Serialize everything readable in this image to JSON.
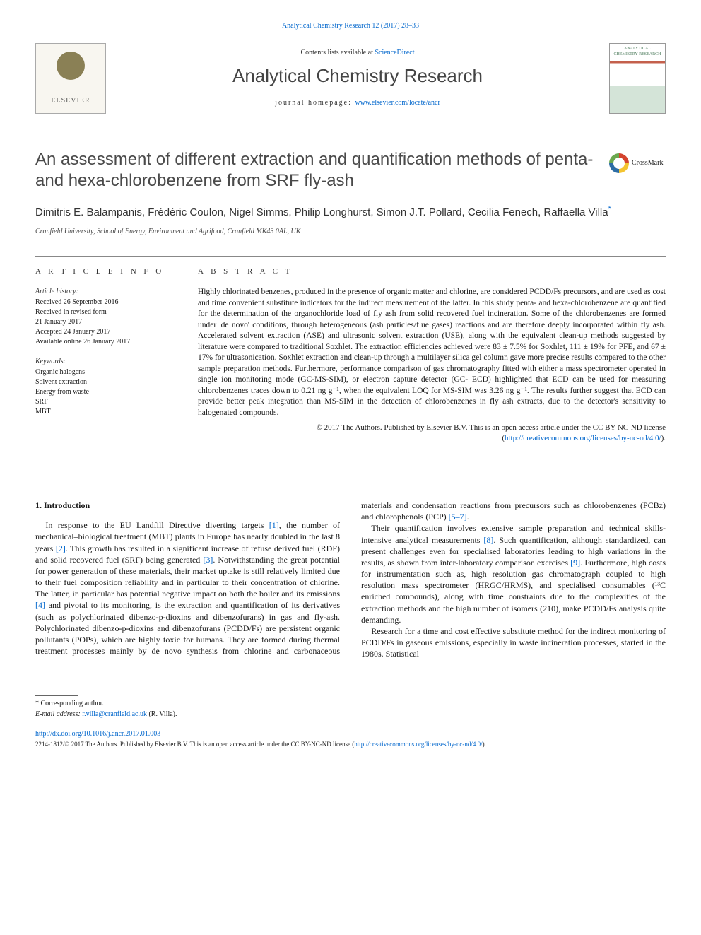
{
  "header": {
    "journal_ref": "Analytical Chemistry Research 12 (2017) 28–33",
    "contents_prefix": "Contents lists available at ",
    "sciencedirect": "ScienceDirect",
    "journal_title": "Analytical Chemistry Research",
    "homepage_prefix": "journal homepage: ",
    "homepage_url": "www.elsevier.com/locate/ancr",
    "elsevier": "ELSEVIER",
    "cover_text": "ANALYTICAL CHEMISTRY RESEARCH"
  },
  "article": {
    "title": "An assessment of different extraction and quantification methods of penta- and hexa-chlorobenzene from SRF fly-ash",
    "crossmark": "CrossMark",
    "authors": "Dimitris E. Balampanis, Frédéric Coulon, Nigel Simms, Philip Longhurst, Simon J.T. Pollard, Cecilia Fenech, Raffaella Villa",
    "affiliation": "Cranfield University, School of Energy, Environment and Agrifood, Cranfield MK43 0AL, UK"
  },
  "info": {
    "ai_head": "A R T I C L E   I N F O",
    "history_head": "Article history:",
    "history": [
      "Received 26 September 2016",
      "Received in revised form",
      "21 January 2017",
      "Accepted 24 January 2017",
      "Available online 26 January 2017"
    ],
    "kw_head": "Keywords:",
    "keywords": [
      "Organic halogens",
      "Solvent extraction",
      "Energy from waste",
      "SRF",
      "MBT"
    ]
  },
  "abstract": {
    "head": "A B S T R A C T",
    "text": "Highly chlorinated benzenes, produced in the presence of organic matter and chlorine, are considered PCDD/Fs precursors, and are used as cost and time convenient substitute indicators for the indirect measurement of the latter. In this study penta- and hexa-chlorobenzene are quantified for the determination of the organochloride load of fly ash from solid recovered fuel incineration. Some of the chlorobenzenes are formed under 'de novo' conditions, through heterogeneous (ash particles/flue gases) reactions and are therefore deeply incorporated within fly ash. Accelerated solvent extraction (ASE) and ultrasonic solvent extraction (USE), along with the equivalent clean-up methods suggested by literature were compared to traditional Soxhlet. The extraction efficiencies achieved were 83 ± 7.5% for Soxhlet, 111 ± 19% for PFE, and 67 ± 17% for ultrasonication. Soxhlet extraction and clean-up through a multilayer silica gel column gave more precise results compared to the other sample preparation methods. Furthermore, performance comparison of gas chromatography fitted with either a mass spectrometer operated in single ion monitoring mode (GC-MS-SIM), or electron capture detector (GC- ECD) highlighted that ECD can be used for measuring chlorobenzenes traces down to 0.21 ng g⁻¹, when the equivalent LOQ for MS-SIM was 3.26 ng g⁻¹. The results further suggest that ECD can provide better peak integration than MS-SIM in the detection of chlorobenzenes in fly ash extracts, due to the detector's sensitivity to halogenated compounds.",
    "copyright": "© 2017 The Authors. Published by Elsevier B.V. This is an open access article under the CC BY-NC-ND license (",
    "cc_url": "http://creativecommons.org/licenses/by-nc-nd/4.0/",
    "copyright_close": ")."
  },
  "body": {
    "section_head": "1. Introduction",
    "p1a": "In response to the EU Landfill Directive diverting targets ",
    "r1": "[1]",
    "p1b": ", the number of mechanical–biological treatment (MBT) plants in Europe has nearly doubled in the last 8 years ",
    "r2": "[2]",
    "p1c": ". This growth has resulted in a significant increase of refuse derived fuel (RDF) and solid recovered fuel (SRF) being generated ",
    "r3": "[3]",
    "p1d": ". Notwithstanding the great potential for power generation of these materials, their market uptake is still relatively limited due to their fuel composition reliability and in particular to their concentration of chlorine. The latter, in particular has potential negative impact on both the boiler and its emissions ",
    "r4": "[4]",
    "p1e": " and pivotal to its monitoring, is the extraction and quantification of its derivatives (such as polychlorinated dibenzo-p-dioxins and dibenzofurans) in gas and fly-ash. Polychlorinated dibenzo-p-dioxins and dibenzofurans (PCDD/",
    "p2a": "Fs) are persistent organic pollutants (POPs), which are highly toxic for humans. They are formed during thermal treatment processes mainly by de novo synthesis from chlorine and carbonaceous materials and condensation reactions from precursors such as chlorobenzenes (PCBz) and chlorophenols (PCP) ",
    "r57": "[5–7]",
    "p2b": ".",
    "p3a": "Their quantification involves extensive sample preparation and technical skills-intensive analytical measurements ",
    "r8": "[8]",
    "p3b": ". Such quantification, although standardized, can present challenges even for specialised laboratories leading to high variations in the results, as shown from inter-laboratory comparison exercises ",
    "r9": "[9]",
    "p3c": ". Furthermore, high costs for instrumentation such as, high resolution gas chromatograph coupled to high resolution mass spectrometer (HRGC/HRMS), and specialised consumables (¹³C enriched compounds), along with time constraints due to the complexities of the extraction methods and the high number of isomers (210), make PCDD/Fs analysis quite demanding.",
    "p4": "Research for a time and cost effective substitute method for the indirect monitoring of PCDD/Fs in gaseous emissions, especially in waste incineration processes, started in the 1980s. Statistical"
  },
  "footer": {
    "corr": "* Corresponding author.",
    "email_label": "E-mail address: ",
    "email": "r.villa@cranfield.ac.uk",
    "email_name": " (R. Villa).",
    "doi": "http://dx.doi.org/10.1016/j.ancr.2017.01.003",
    "bottom1": "2214-1812/© 2017 The Authors. Published by Elsevier B.V. This is an open access article under the CC BY-NC-ND license (",
    "bottom_url": "http://creativecommons.org/licenses/by-nc-nd/4.0/",
    "bottom2": ")."
  },
  "style": {
    "link_color": "#0066cc",
    "text_color": "#1a1a1a",
    "rule_color": "#888"
  }
}
